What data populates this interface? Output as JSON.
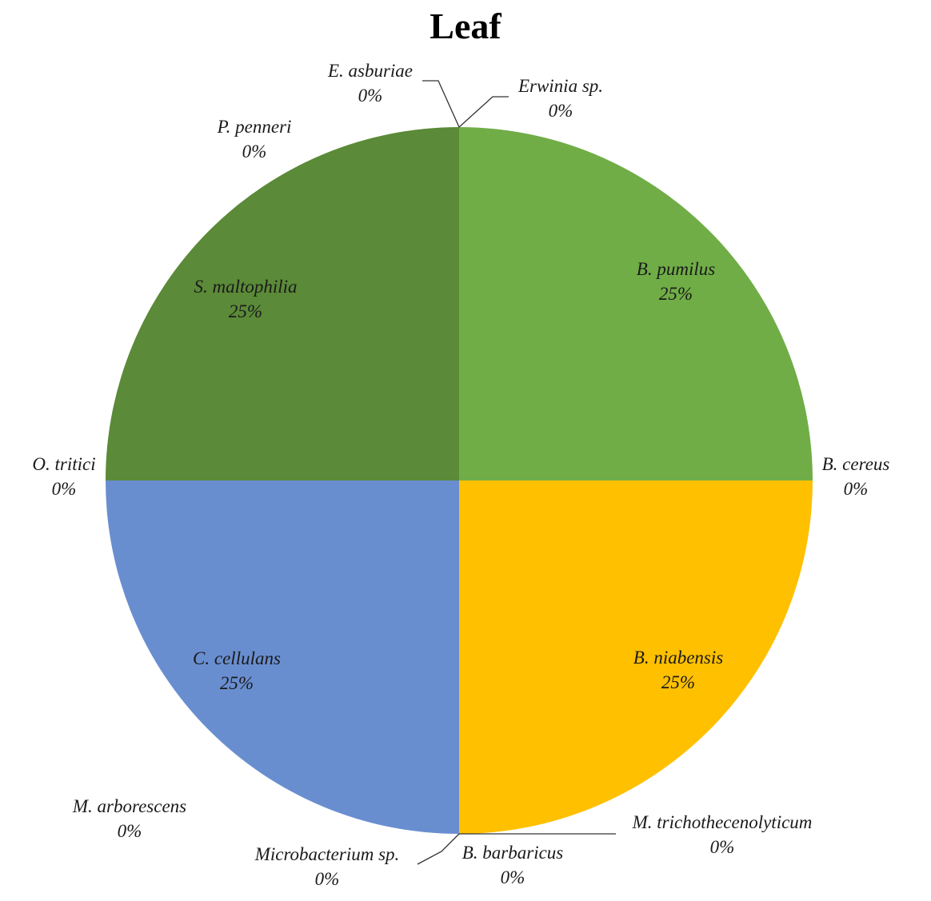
{
  "chart_data": {
    "type": "pie",
    "title": "Leaf",
    "slices": [
      {
        "name": "B. pumilus",
        "value": 25,
        "label": "25%",
        "color": "#70AD47"
      },
      {
        "name": "B. cereus",
        "value": 0,
        "label": "0%"
      },
      {
        "name": "B. niabensis",
        "value": 25,
        "label": "25%",
        "color": "#FFC000"
      },
      {
        "name": "M. trichothecenolyticum",
        "value": 0,
        "label": "0%"
      },
      {
        "name": "B. barbaricus",
        "value": 0,
        "label": "0%"
      },
      {
        "name": "Microbacterium sp.",
        "value": 0,
        "label": "0%"
      },
      {
        "name": "C. cellulans",
        "value": 25,
        "label": "25%",
        "color": "#698ED0"
      },
      {
        "name": "M. arborescens",
        "value": 0,
        "label": "0%"
      },
      {
        "name": "O. tritici",
        "value": 0,
        "label": "0%"
      },
      {
        "name": "S. maltophilia",
        "value": 25,
        "label": "25%",
        "color": "#5B8A38"
      },
      {
        "name": "P. penneri",
        "value": 0,
        "label": "0%"
      },
      {
        "name": "E. asburiae",
        "value": 0,
        "label": "0%"
      },
      {
        "name": "Erwinia sp.",
        "value": 0,
        "label": "0%"
      }
    ]
  }
}
